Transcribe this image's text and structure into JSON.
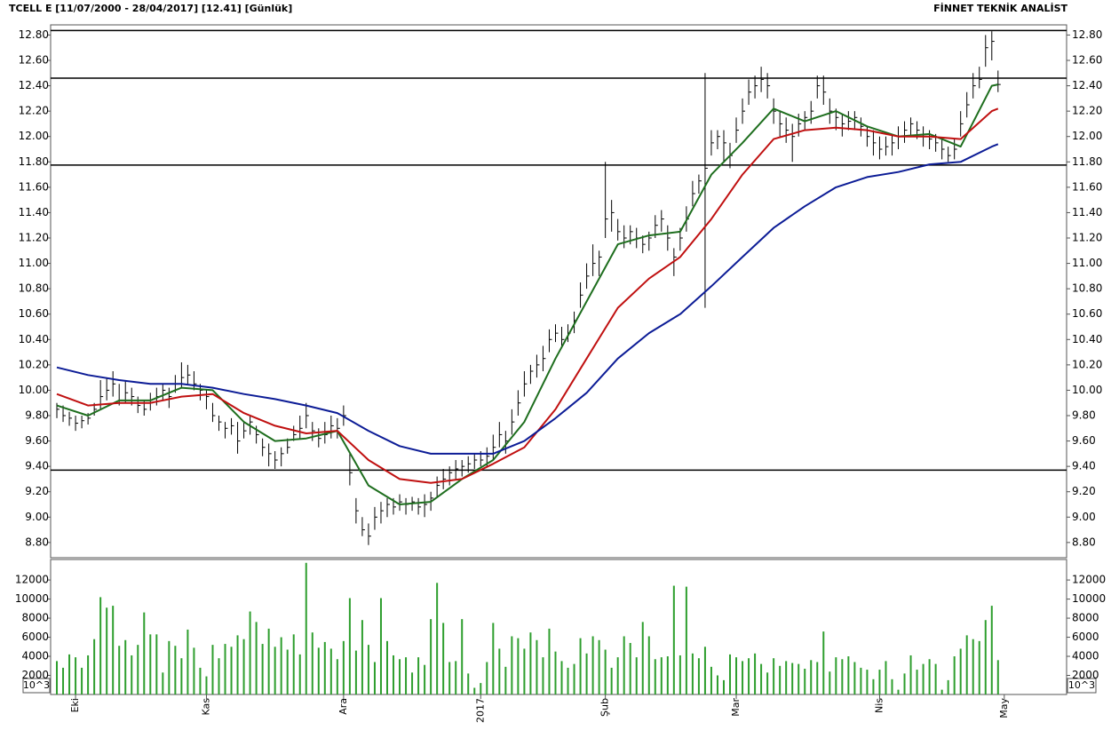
{
  "chart_data": {
    "type": "ohlc",
    "title": "TCELL E  [11/07/2000 - 28/04/2017]  [12.41]  [Günlük]",
    "source": "FİNNET TEKNİK ANALİST",
    "xlim": [
      -1,
      162
    ],
    "xticks": [
      {
        "value": 3,
        "label": "Eki"
      },
      {
        "value": 24,
        "label": "Kas"
      },
      {
        "value": 46,
        "label": "Ara"
      },
      {
        "value": 68,
        "label": "2017"
      },
      {
        "value": 88,
        "label": "Şub"
      },
      {
        "value": 109,
        "label": "Mar"
      },
      {
        "value": 132,
        "label": "Nis"
      },
      {
        "value": 152,
        "label": "May"
      }
    ],
    "ylim": [
      8.68,
      12.88
    ],
    "yticks": [
      {
        "value": 8.8,
        "label": "8.80"
      },
      {
        "value": 9.0,
        "label": "9.00"
      },
      {
        "value": 9.2,
        "label": "9.20"
      },
      {
        "value": 9.4,
        "label": "9.40"
      },
      {
        "value": 9.6,
        "label": "9.60"
      },
      {
        "value": 9.8,
        "label": "9.80"
      },
      {
        "value": 10.0,
        "label": "10.00"
      },
      {
        "value": 10.2,
        "label": "10.20"
      },
      {
        "value": 10.4,
        "label": "10.40"
      },
      {
        "value": 10.6,
        "label": "10.60"
      },
      {
        "value": 10.8,
        "label": "10.80"
      },
      {
        "value": 11.0,
        "label": "11.00"
      },
      {
        "value": 11.2,
        "label": "11.20"
      },
      {
        "value": 11.4,
        "label": "11.40"
      },
      {
        "value": 11.6,
        "label": "11.60"
      },
      {
        "value": 11.8,
        "label": "11.80"
      },
      {
        "value": 12.0,
        "label": "12.00"
      },
      {
        "value": 12.2,
        "label": "12.20"
      },
      {
        "value": 12.4,
        "label": "12.40"
      },
      {
        "value": 12.6,
        "label": "12.60"
      },
      {
        "value": 12.8,
        "label": "12.80"
      }
    ],
    "color": "#000000",
    "high": [
      9.9,
      9.88,
      9.83,
      9.8,
      9.8,
      9.82,
      9.9,
      10.08,
      10.1,
      10.15,
      10.05,
      10.08,
      10.02,
      9.95,
      9.92,
      9.98,
      10.02,
      10.05,
      10.02,
      10.12,
      10.22,
      10.2,
      10.15,
      10.05,
      10.0,
      9.9,
      9.8,
      9.75,
      9.78,
      9.75,
      9.75,
      9.8,
      9.72,
      9.62,
      9.58,
      9.52,
      9.55,
      9.62,
      9.72,
      9.8,
      9.9,
      9.75,
      9.7,
      9.75,
      9.8,
      9.78,
      9.88,
      9.5,
      9.15,
      9.0,
      8.95,
      9.08,
      9.12,
      9.15,
      9.15,
      9.18,
      9.15,
      9.16,
      9.15,
      9.18,
      9.2,
      9.32,
      9.38,
      9.4,
      9.45,
      9.45,
      9.48,
      9.5,
      9.52,
      9.55,
      9.65,
      9.75,
      9.68,
      9.85,
      10.0,
      10.15,
      10.2,
      10.28,
      10.35,
      10.48,
      10.52,
      10.5,
      10.52,
      10.62,
      10.85,
      11.0,
      11.15,
      11.1,
      11.8,
      11.5,
      11.35,
      11.3,
      11.3,
      11.28,
      11.22,
      11.25,
      11.38,
      11.42,
      11.3,
      11.12,
      11.28,
      11.45,
      11.65,
      11.7,
      12.5,
      12.05,
      12.05,
      12.05,
      11.95,
      12.15,
      12.3,
      12.45,
      12.48,
      12.55,
      12.5,
      12.3,
      12.2,
      12.15,
      12.1,
      12.18,
      12.2,
      12.28,
      12.48,
      12.48,
      12.3,
      12.22,
      12.18,
      12.2,
      12.2,
      12.15,
      12.08,
      12.05,
      12.0,
      12.0,
      12.02,
      12.08,
      12.12,
      12.15,
      12.12,
      12.08,
      12.05,
      12.02,
      11.98,
      11.92,
      11.98,
      12.2,
      12.35,
      12.5,
      12.55,
      12.8,
      12.83,
      12.52
    ],
    "low": [
      9.78,
      9.75,
      9.72,
      9.68,
      9.7,
      9.73,
      9.8,
      9.85,
      9.92,
      9.95,
      9.88,
      9.9,
      9.88,
      9.82,
      9.8,
      9.84,
      9.88,
      9.92,
      9.86,
      9.98,
      10.02,
      10.05,
      10.0,
      9.92,
      9.85,
      9.75,
      9.68,
      9.62,
      9.65,
      9.5,
      9.62,
      9.65,
      9.58,
      9.48,
      9.4,
      9.38,
      9.4,
      9.5,
      9.6,
      9.62,
      9.7,
      9.6,
      9.55,
      9.58,
      9.62,
      9.62,
      9.72,
      9.25,
      8.95,
      8.85,
      8.78,
      8.9,
      8.95,
      9.0,
      9.02,
      9.05,
      9.02,
      9.05,
      9.02,
      9.0,
      9.05,
      9.15,
      9.22,
      9.25,
      9.3,
      9.32,
      9.35,
      9.38,
      9.4,
      9.4,
      9.45,
      9.55,
      9.5,
      9.65,
      9.8,
      9.95,
      10.05,
      10.1,
      10.15,
      10.3,
      10.38,
      10.35,
      10.38,
      10.45,
      10.65,
      10.8,
      10.9,
      10.9,
      11.2,
      11.25,
      11.18,
      11.12,
      11.15,
      11.12,
      11.08,
      11.1,
      11.2,
      11.25,
      11.1,
      10.9,
      11.1,
      11.25,
      11.45,
      11.55,
      10.65,
      11.85,
      11.9,
      11.8,
      11.75,
      11.95,
      12.1,
      12.25,
      12.3,
      12.35,
      12.3,
      12.1,
      12.0,
      11.95,
      11.8,
      12.0,
      12.05,
      12.1,
      12.3,
      12.25,
      12.1,
      12.05,
      12.0,
      12.05,
      12.05,
      12.0,
      11.92,
      11.85,
      11.82,
      11.85,
      11.85,
      11.9,
      11.95,
      12.0,
      11.98,
      11.92,
      11.9,
      11.88,
      11.82,
      11.8,
      11.82,
      12.0,
      12.15,
      12.3,
      12.38,
      12.55,
      12.6,
      12.35
    ],
    "close": [
      9.85,
      9.8,
      9.78,
      9.74,
      9.76,
      9.78,
      9.85,
      9.95,
      10.0,
      10.05,
      9.92,
      9.98,
      9.95,
      9.88,
      9.85,
      9.9,
      9.95,
      10.0,
      9.95,
      10.05,
      10.1,
      10.12,
      10.05,
      10.0,
      9.95,
      9.8,
      9.75,
      9.7,
      9.72,
      9.6,
      9.68,
      9.75,
      9.65,
      9.55,
      9.5,
      9.45,
      9.5,
      9.55,
      9.65,
      9.7,
      9.8,
      9.68,
      9.62,
      9.65,
      9.72,
      9.7,
      9.8,
      9.35,
      9.05,
      8.9,
      8.85,
      9.0,
      9.05,
      9.1,
      9.08,
      9.12,
      9.1,
      9.12,
      9.08,
      9.1,
      9.15,
      9.25,
      9.3,
      9.35,
      9.38,
      9.4,
      9.42,
      9.45,
      9.45,
      9.48,
      9.55,
      9.65,
      9.6,
      9.75,
      9.9,
      10.05,
      10.15,
      10.2,
      10.25,
      10.4,
      10.45,
      10.4,
      10.45,
      10.55,
      10.75,
      10.9,
      11.0,
      11.05,
      11.35,
      11.4,
      11.25,
      11.2,
      11.25,
      11.2,
      11.15,
      11.2,
      11.3,
      11.35,
      11.2,
      11.05,
      11.2,
      11.35,
      11.55,
      11.65,
      11.75,
      11.95,
      12.0,
      11.95,
      11.85,
      12.05,
      12.2,
      12.35,
      12.4,
      12.45,
      12.4,
      12.2,
      12.1,
      12.05,
      12.0,
      12.1,
      12.15,
      12.2,
      12.4,
      12.35,
      12.2,
      12.15,
      12.1,
      12.12,
      12.15,
      12.08,
      12.0,
      11.95,
      11.9,
      11.92,
      11.95,
      12.0,
      12.05,
      12.1,
      12.05,
      12.0,
      11.98,
      11.95,
      11.9,
      11.85,
      11.9,
      12.1,
      12.25,
      12.4,
      12.45,
      12.7,
      12.75,
      12.41
    ],
    "levels": [
      12.835,
      12.46,
      11.775,
      9.37
    ],
    "moving_averages": {
      "x": [
        0,
        5,
        10,
        15,
        20,
        25,
        30,
        35,
        40,
        45,
        50,
        55,
        60,
        65,
        70,
        75,
        80,
        85,
        90,
        95,
        100,
        105,
        110,
        115,
        120,
        125,
        130,
        135,
        140,
        145,
        150,
        151
      ],
      "series": [
        {
          "color": "#1e6e1e",
          "values": [
            9.88,
            9.8,
            9.92,
            9.92,
            10.02,
            10.0,
            9.75,
            9.6,
            9.62,
            9.68,
            9.25,
            9.1,
            9.12,
            9.3,
            9.45,
            9.75,
            10.25,
            10.7,
            11.15,
            11.22,
            11.25,
            11.7,
            11.95,
            12.22,
            12.12,
            12.2,
            12.08,
            12.0,
            12.02,
            11.92,
            12.4,
            12.41
          ]
        },
        {
          "color": "#c01010",
          "values": [
            9.97,
            9.88,
            9.9,
            9.9,
            9.95,
            9.97,
            9.82,
            9.72,
            9.66,
            9.68,
            9.45,
            9.3,
            9.27,
            9.3,
            9.42,
            9.55,
            9.85,
            10.25,
            10.65,
            10.88,
            11.05,
            11.35,
            11.7,
            11.98,
            12.05,
            12.07,
            12.05,
            12.0,
            12.0,
            11.98,
            12.2,
            12.22
          ]
        },
        {
          "color": "#0c1c96",
          "values": [
            10.18,
            10.12,
            10.08,
            10.05,
            10.05,
            10.02,
            9.97,
            9.93,
            9.88,
            9.82,
            9.68,
            9.56,
            9.5,
            9.5,
            9.5,
            9.6,
            9.78,
            9.98,
            10.25,
            10.45,
            10.6,
            10.82,
            11.05,
            11.28,
            11.45,
            11.6,
            11.68,
            11.72,
            11.78,
            11.8,
            11.92,
            11.94
          ]
        }
      ]
    },
    "volume": {
      "color": "#2e9e2e",
      "unit_label": "10^3",
      "ylim": [
        0,
        14150
      ],
      "yticks": [
        2000,
        4000,
        6000,
        8000,
        10000,
        12000
      ],
      "values": [
        3500,
        2800,
        4200,
        3900,
        2800,
        4100,
        5800,
        10200,
        9100,
        9300,
        5100,
        5700,
        4100,
        5200,
        8600,
        6300,
        6300,
        2300,
        5600,
        5100,
        3800,
        6800,
        4900,
        2800,
        1900,
        5200,
        3800,
        5300,
        5000,
        6200,
        5800,
        8700,
        7600,
        5300,
        6900,
        5000,
        6000,
        4700,
        6300,
        4200,
        13800,
        6500,
        4900,
        5500,
        4800,
        3700,
        5600,
        10100,
        4600,
        7800,
        5200,
        3400,
        10100,
        5600,
        4100,
        3700,
        3900,
        2300,
        3900,
        3100,
        7900,
        11700,
        7500,
        3400,
        3500,
        7900,
        2200,
        700,
        1200,
        3400,
        7500,
        4800,
        2900,
        6100,
        5900,
        4800,
        6500,
        5700,
        3900,
        6900,
        4500,
        3500,
        2800,
        3200,
        5900,
        4300,
        6100,
        5700,
        4700,
        2800,
        3900,
        6100,
        5400,
        3900,
        7600,
        6100,
        3700,
        3900,
        4000,
        11400,
        4100,
        11300,
        4300,
        3800,
        5000,
        2900,
        2000,
        1500,
        4200,
        3900,
        3500,
        3800,
        4300,
        3200,
        2300,
        3800,
        3000,
        3500,
        3300,
        3200,
        2700,
        3600,
        3400,
        6600,
        2400,
        3900,
        3700,
        4000,
        3400,
        2800,
        2600,
        1600,
        2600,
        3500,
        1600,
        500,
        2200,
        4100,
        2600,
        3200,
        3700,
        3200,
        500,
        1500,
        4000,
        4800,
        6200,
        5800,
        5600,
        7800,
        9300,
        3600
      ]
    }
  }
}
